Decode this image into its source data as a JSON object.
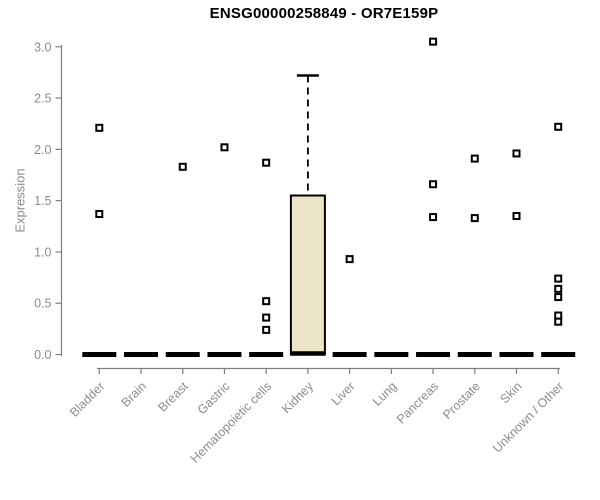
{
  "chart_data": {
    "type": "boxplot",
    "title": "ENSG00000258849 - OR7E159P",
    "ylabel": "Expression",
    "ylim": [
      0.0,
      3.0
    ],
    "yticks": [
      0.0,
      0.5,
      1.0,
      1.5,
      2.0,
      2.5,
      3.0
    ],
    "categories": [
      "Bladder",
      "Brain",
      "Breast",
      "Gastric",
      "Hematopoietic cells",
      "Kidney",
      "Liver",
      "Lung",
      "Pancreas",
      "Prostate",
      "Skin",
      "Unknown / Other"
    ],
    "grid": false,
    "legend": "none",
    "boxes": [
      {
        "category": "Bladder",
        "q1": 0,
        "median": 0,
        "q3": 0,
        "whisker_low": 0,
        "whisker_high": 0,
        "outliers": [
          2.21,
          1.37
        ]
      },
      {
        "category": "Brain",
        "q1": 0,
        "median": 0,
        "q3": 0,
        "whisker_low": 0,
        "whisker_high": 0,
        "outliers": []
      },
      {
        "category": "Breast",
        "q1": 0,
        "median": 0,
        "q3": 0,
        "whisker_low": 0,
        "whisker_high": 0,
        "outliers": [
          1.83
        ]
      },
      {
        "category": "Gastric",
        "q1": 0,
        "median": 0,
        "q3": 0,
        "whisker_low": 0,
        "whisker_high": 0,
        "outliers": [
          2.02
        ]
      },
      {
        "category": "Hematopoietic cells",
        "q1": 0,
        "median": 0,
        "q3": 0,
        "whisker_low": 0,
        "whisker_high": 0,
        "outliers": [
          1.87,
          0.52,
          0.36,
          0.24
        ]
      },
      {
        "category": "Kidney",
        "q1": 0,
        "median": 0.01,
        "q3": 1.55,
        "whisker_low": 0,
        "whisker_high": 2.72,
        "outliers": []
      },
      {
        "category": "Liver",
        "q1": 0,
        "median": 0,
        "q3": 0,
        "whisker_low": 0,
        "whisker_high": 0,
        "outliers": [
          0.93
        ]
      },
      {
        "category": "Lung",
        "q1": 0,
        "median": 0,
        "q3": 0,
        "whisker_low": 0,
        "whisker_high": 0,
        "outliers": []
      },
      {
        "category": "Pancreas",
        "q1": 0,
        "median": 0,
        "q3": 0,
        "whisker_low": 0,
        "whisker_high": 0,
        "outliers": [
          3.05,
          1.66,
          1.34
        ]
      },
      {
        "category": "Prostate",
        "q1": 0,
        "median": 0,
        "q3": 0,
        "whisker_low": 0,
        "whisker_high": 0,
        "outliers": [
          1.91,
          1.33
        ]
      },
      {
        "category": "Skin",
        "q1": 0,
        "median": 0,
        "q3": 0,
        "whisker_low": 0,
        "whisker_high": 0,
        "outliers": [
          1.96,
          1.35
        ]
      },
      {
        "category": "Unknown / Other",
        "q1": 0,
        "median": 0,
        "q3": 0,
        "whisker_low": 0,
        "whisker_high": 0,
        "outliers": [
          2.22,
          0.74,
          0.64,
          0.56,
          0.38,
          0.32
        ]
      }
    ],
    "colors": {
      "box_fill": "#ece5c9",
      "box_border": "#000000",
      "median": "#000000",
      "outlier": "#000000",
      "outlier_fill": "#ffffff",
      "axis": "#7f7f7f",
      "tick_label": "#8c8c8c",
      "title": "#000000",
      "background": "#ffffff"
    }
  }
}
